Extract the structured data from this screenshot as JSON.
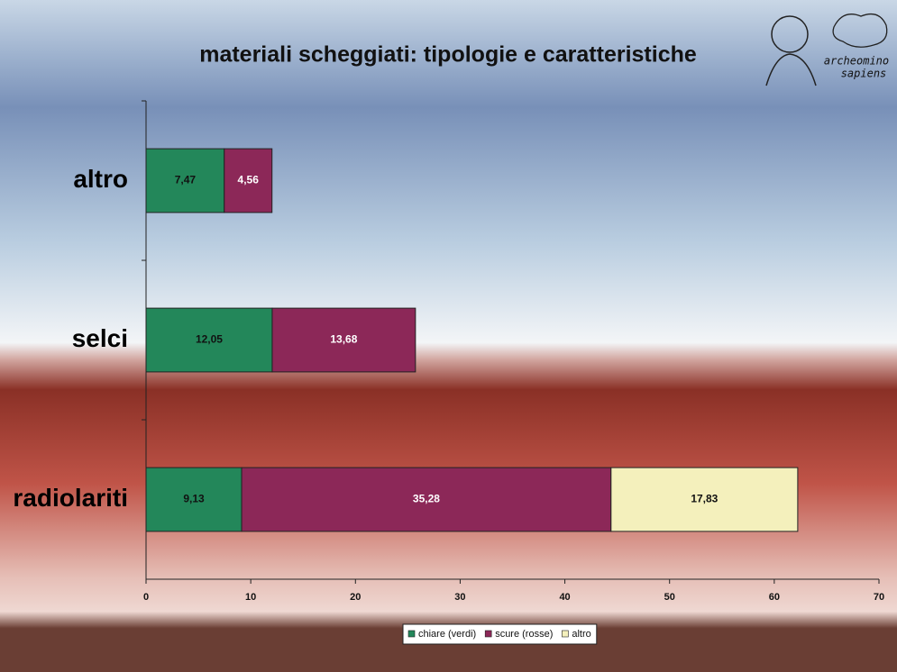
{
  "chart_data": {
    "type": "stacked-bar-horizontal",
    "title": "materiali scheggiati: tipologie e caratteristiche",
    "categories": [
      "altro",
      "selci",
      "radiolariti"
    ],
    "series": [
      {
        "name": "chiare (verdi)",
        "color": "#23875a",
        "label_color": "#111111",
        "values": [
          7.47,
          12.05,
          9.13
        ],
        "value_labels": [
          "7,47",
          "12,05",
          "9,13"
        ]
      },
      {
        "name": "scure (rosse)",
        "color": "#8c2858",
        "label_color": "#ffffff",
        "values": [
          4.56,
          13.68,
          35.28
        ],
        "value_labels": [
          "4,56",
          "13,68",
          "35,28"
        ]
      },
      {
        "name": "altro",
        "color": "#f4f0bc",
        "label_color": "#111111",
        "values": [
          null,
          null,
          17.83
        ],
        "value_labels": [
          null,
          null,
          "17,83"
        ]
      }
    ],
    "xlim": [
      0,
      70
    ],
    "xticks": [
      0,
      10,
      20,
      30,
      40,
      50,
      60,
      70
    ],
    "legend": "bottom"
  },
  "logo": {
    "line1": "archeomino",
    "line2": "sapiens"
  }
}
